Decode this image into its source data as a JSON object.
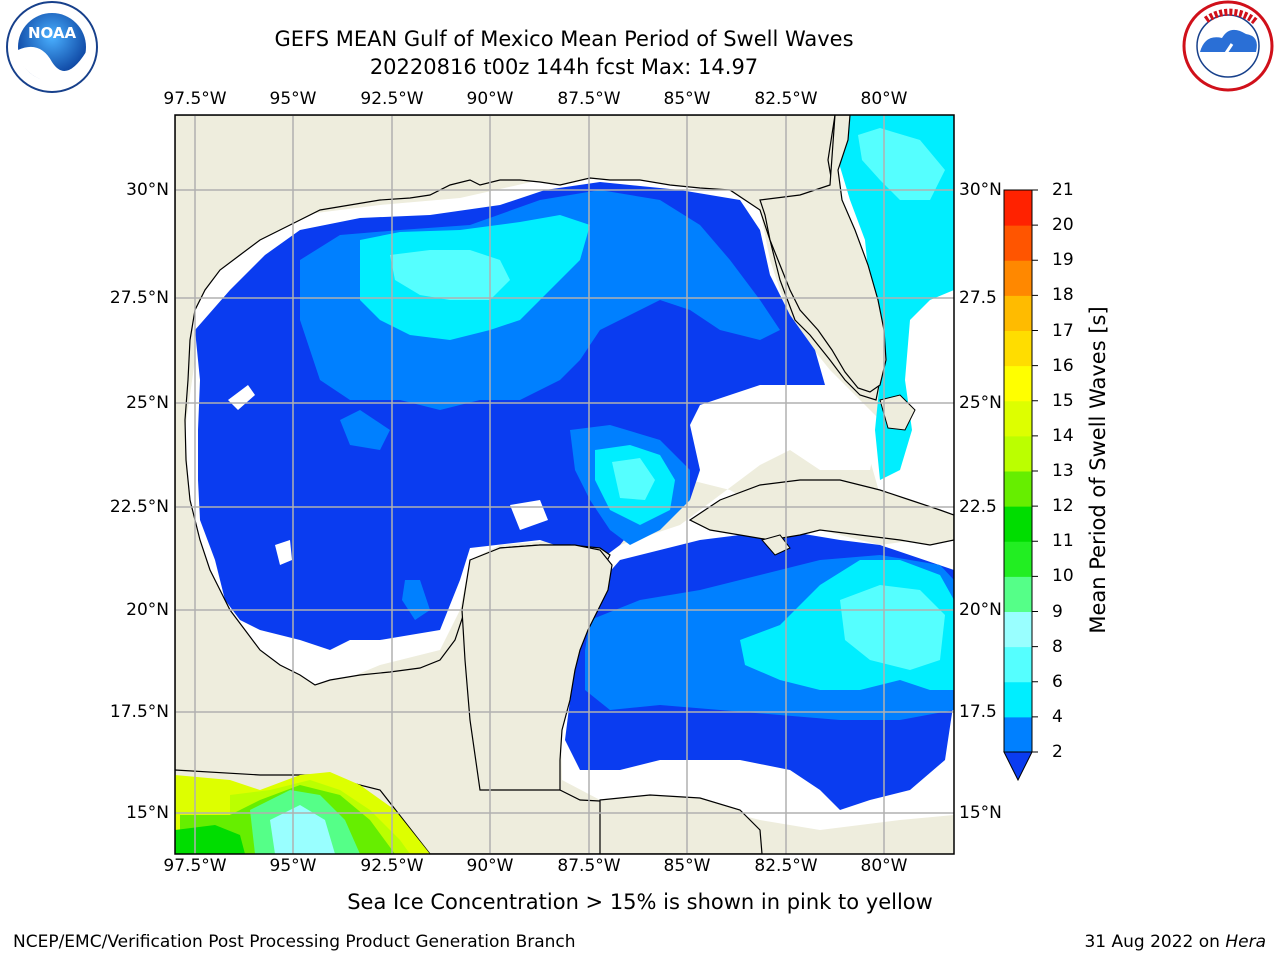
{
  "title": {
    "line1": "GEFS MEAN Gulf of Mexico Mean Period of Swell Waves",
    "line2": "20220816 t00z 144h fcst   Max: 14.97"
  },
  "map": {
    "lon_labels": [
      "97.5°W",
      "95°W",
      "92.5°W",
      "90°W",
      "87.5°W",
      "85°W",
      "82.5°W",
      "80°W"
    ],
    "lat_labels_left": [
      "30°N",
      "27.5°N",
      "25°N",
      "22.5°N",
      "20°N",
      "17.5°N",
      "15°N"
    ],
    "lat_labels_right": [
      "30°N",
      "27.5",
      "25°N",
      "22.5",
      "20°N",
      "17.5",
      "15°N"
    ],
    "land_color": "#eeeddd",
    "ocean_missing_color": "#ffffff"
  },
  "colorbar": {
    "title": "Mean Period of Swell Waves [s]",
    "ticks": [
      "2",
      "4",
      "6",
      "8",
      "9",
      "10",
      "11",
      "12",
      "13",
      "14",
      "15",
      "16",
      "17",
      "18",
      "19",
      "20",
      "21"
    ],
    "colors": [
      "#0a3cf0",
      "#0080ff",
      "#00eeff",
      "#55ffff",
      "#99ffff",
      "#55ff88",
      "#22ee22",
      "#00dd00",
      "#66ee00",
      "#bbff00",
      "#ddff00",
      "#ffff00",
      "#ffdd00",
      "#ffbb00",
      "#ff8800",
      "#ff5500",
      "#ff2200",
      "#ff0000"
    ]
  },
  "footnote": "Sea Ice Concentration > 15% is shown in pink to yellow",
  "credit_left": "NCEP/EMC/Verification Post Processing Product Generation Branch",
  "credit_right_prefix": "31 Aug 2022 on ",
  "credit_right_host": "Hera",
  "logos": {
    "noaa": "NOAA",
    "nws": "NATIONAL WEATHER SERVICE"
  }
}
